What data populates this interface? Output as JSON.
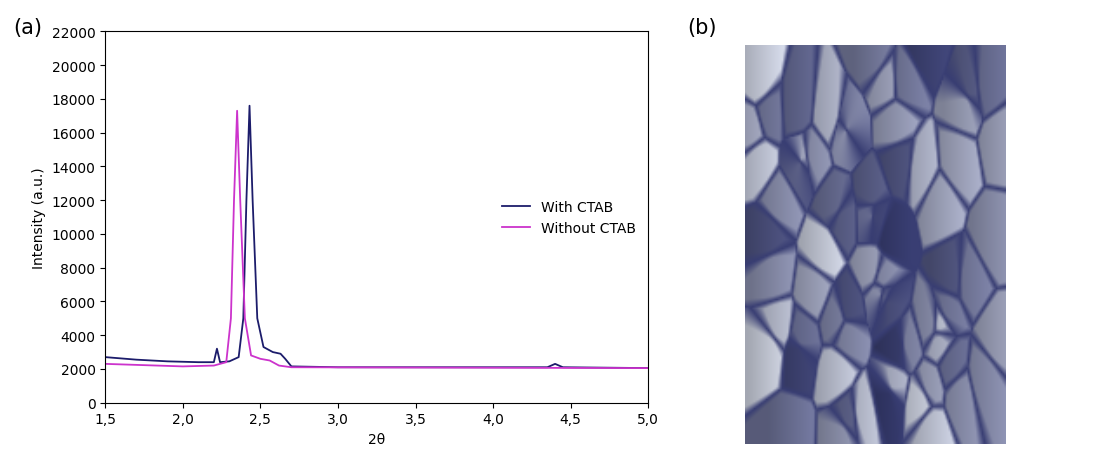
{
  "panel_labels": [
    "(a)",
    "(b)"
  ],
  "chart_data": {
    "type": "line",
    "x_label": "2θ",
    "y_label": "Intensity (a.u.)",
    "xlim": [
      1.5,
      5.0
    ],
    "xticks": [
      {
        "value": 1.5,
        "label": "1,5"
      },
      {
        "value": 2.0,
        "label": "2,0"
      },
      {
        "value": 2.5,
        "label": "2,5"
      },
      {
        "value": 3.0,
        "label": "3,0"
      },
      {
        "value": 3.5,
        "label": "3,5"
      },
      {
        "value": 4.0,
        "label": "4,0"
      },
      {
        "value": 4.5,
        "label": "4,5"
      },
      {
        "value": 5.0,
        "label": "5,0"
      }
    ],
    "ylim": [
      0,
      22000
    ],
    "yticks": [
      0,
      2000,
      4000,
      6000,
      8000,
      10000,
      12000,
      14000,
      16000,
      18000,
      20000,
      22000
    ],
    "legend": "right",
    "series": [
      {
        "name": "With CTAB",
        "color": "#1c1c6b",
        "x": [
          1.5,
          1.7,
          1.9,
          2.1,
          2.2,
          2.22,
          2.24,
          2.3,
          2.36,
          2.39,
          2.41,
          2.43,
          2.45,
          2.48,
          2.52,
          2.58,
          2.63,
          2.66,
          2.7,
          3.0,
          3.5,
          4.0,
          4.35,
          4.4,
          4.45,
          5.0
        ],
        "values": [
          2700,
          2550,
          2450,
          2400,
          2400,
          3200,
          2400,
          2450,
          2700,
          5000,
          12000,
          17600,
          12000,
          5000,
          3300,
          3000,
          2900,
          2600,
          2150,
          2100,
          2100,
          2100,
          2100,
          2300,
          2100,
          2050
        ]
      },
      {
        "name": "Without CTAB",
        "color": "#cc33cc",
        "x": [
          1.5,
          2.0,
          2.2,
          2.28,
          2.31,
          2.33,
          2.35,
          2.37,
          2.4,
          2.44,
          2.5,
          2.56,
          2.62,
          2.7,
          5.0
        ],
        "values": [
          2300,
          2150,
          2200,
          2400,
          5000,
          12000,
          17300,
          12000,
          5000,
          2800,
          2600,
          2500,
          2200,
          2100,
          2050
        ]
      }
    ]
  }
}
